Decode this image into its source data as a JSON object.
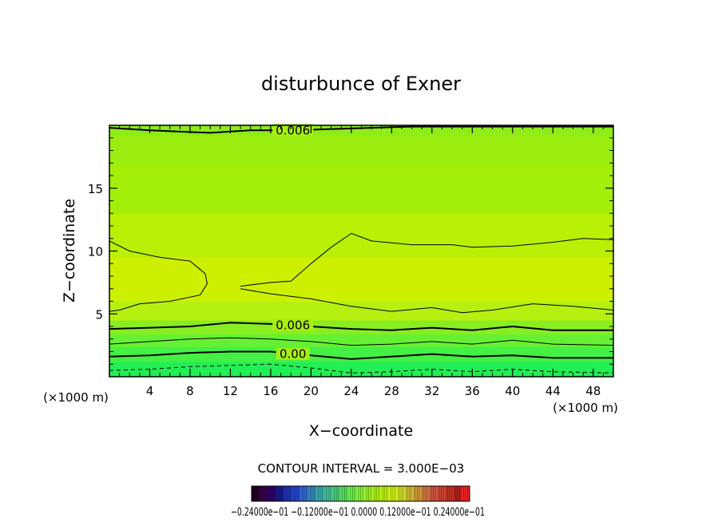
{
  "chart_data": {
    "type": "contour",
    "title": "disturbunce of Exner",
    "xlabel": "X−coordinate",
    "ylabel": "Z−coordinate",
    "x_units_left": "(×1000 m)",
    "x_units_right": "(×1000 m)",
    "xlim": [
      0,
      50
    ],
    "ylim": [
      0,
      20
    ],
    "xticks": [
      4,
      8,
      12,
      16,
      20,
      24,
      28,
      32,
      36,
      40,
      44,
      48
    ],
    "yticks": [
      5,
      10,
      15
    ],
    "contour_interval_text": "CONTOUR INTERVAL = 3.000E−03",
    "contour_labels": [
      {
        "text": "0.006",
        "x": 18.2,
        "z": 19.6
      },
      {
        "text": "0.006",
        "x": 18.2,
        "z": 4.1
      },
      {
        "text": "0.00",
        "x": 18.2,
        "z": 1.8
      }
    ],
    "contour_lines": [
      {
        "level": "upper",
        "style": "thick",
        "points": [
          [
            0,
            19.8
          ],
          [
            4,
            19.6
          ],
          [
            10,
            19.4
          ],
          [
            14,
            19.6
          ],
          [
            18,
            19.6
          ],
          [
            30,
            19.9
          ],
          [
            50,
            19.9
          ]
        ]
      },
      {
        "level": "mid",
        "style": "thin",
        "points": [
          [
            0,
            10.8
          ],
          [
            2,
            10
          ],
          [
            5,
            9.5
          ],
          [
            8,
            9.2
          ],
          [
            9.5,
            8.2
          ],
          [
            9.7,
            7.4
          ],
          [
            9,
            6.5
          ],
          [
            6,
            6
          ],
          [
            3,
            5.8
          ],
          [
            1,
            5.3
          ],
          [
            0,
            5.2
          ]
        ]
      },
      {
        "level": "mid",
        "style": "thin",
        "points": [
          [
            13,
            7.2
          ],
          [
            14,
            7.3
          ],
          [
            16,
            7.5
          ],
          [
            18,
            7.6
          ],
          [
            19,
            8.3
          ],
          [
            20,
            9
          ],
          [
            22,
            10.3
          ],
          [
            24,
            11.4
          ],
          [
            26,
            10.8
          ],
          [
            30,
            10.5
          ],
          [
            34,
            10.5
          ],
          [
            36,
            10.3
          ],
          [
            40,
            10.4
          ],
          [
            44,
            10.7
          ],
          [
            47,
            11
          ],
          [
            50,
            10.9
          ]
        ]
      },
      {
        "level": "mid",
        "style": "thin",
        "points": [
          [
            13,
            7
          ],
          [
            16,
            6.6
          ],
          [
            20,
            6.2
          ],
          [
            24,
            5.6
          ],
          [
            28,
            5.2
          ],
          [
            32,
            5.5
          ],
          [
            35,
            5.1
          ],
          [
            38,
            5.3
          ],
          [
            42,
            5.8
          ],
          [
            46,
            5.6
          ],
          [
            50,
            5.3
          ]
        ]
      },
      {
        "level": "0.006",
        "style": "thick",
        "points": [
          [
            0,
            3.8
          ],
          [
            4,
            3.9
          ],
          [
            8,
            4.0
          ],
          [
            12,
            4.3
          ],
          [
            16,
            4.2
          ],
          [
            20,
            4.0
          ],
          [
            24,
            3.8
          ],
          [
            28,
            3.7
          ],
          [
            32,
            3.9
          ],
          [
            36,
            3.7
          ],
          [
            40,
            4.0
          ],
          [
            44,
            3.7
          ],
          [
            50,
            3.7
          ]
        ]
      },
      {
        "level": "low",
        "style": "thin",
        "points": [
          [
            0,
            2.6
          ],
          [
            4,
            2.8
          ],
          [
            8,
            3.0
          ],
          [
            12,
            3.1
          ],
          [
            16,
            3.0
          ],
          [
            20,
            2.8
          ],
          [
            24,
            2.5
          ],
          [
            28,
            2.6
          ],
          [
            32,
            2.8
          ],
          [
            36,
            2.6
          ],
          [
            40,
            2.9
          ],
          [
            44,
            2.6
          ],
          [
            50,
            2.5
          ]
        ]
      },
      {
        "level": "0.00",
        "style": "thick",
        "points": [
          [
            0,
            1.6
          ],
          [
            4,
            1.7
          ],
          [
            8,
            1.9
          ],
          [
            12,
            2.0
          ],
          [
            16,
            2.0
          ],
          [
            20,
            1.7
          ],
          [
            24,
            1.4
          ],
          [
            28,
            1.6
          ],
          [
            32,
            1.8
          ],
          [
            36,
            1.6
          ],
          [
            40,
            1.7
          ],
          [
            44,
            1.5
          ],
          [
            50,
            1.5
          ]
        ]
      },
      {
        "level": "neg",
        "style": "dashed",
        "points": [
          [
            0,
            0.5
          ],
          [
            4,
            0.6
          ],
          [
            8,
            0.8
          ],
          [
            12,
            0.9
          ],
          [
            16,
            1.0
          ],
          [
            20,
            0.7
          ],
          [
            24,
            0.3
          ],
          [
            28,
            0.4
          ],
          [
            32,
            0.6
          ],
          [
            36,
            0.4
          ],
          [
            40,
            0.6
          ],
          [
            44,
            0.4
          ],
          [
            50,
            0.3
          ]
        ]
      }
    ],
    "fill_bands": [
      {
        "z": [
          0,
          1.2
        ],
        "color": "#22ee55"
      },
      {
        "z": [
          1.2,
          2.4
        ],
        "color": "#44f044"
      },
      {
        "z": [
          2.4,
          3.4
        ],
        "color": "#66f033"
      },
      {
        "z": [
          3.4,
          4.5
        ],
        "color": "#88ee22"
      },
      {
        "z": [
          4.5,
          6.0
        ],
        "color": "#b5f010"
      },
      {
        "z": [
          6.0,
          9.5
        ],
        "color": "#ccf000"
      },
      {
        "z": [
          9.5,
          13.0
        ],
        "color": "#b9f005"
      },
      {
        "z": [
          13.0,
          17.0
        ],
        "color": "#a3ef0a"
      },
      {
        "z": [
          17.0,
          19.2
        ],
        "color": "#9cee10"
      },
      {
        "z": [
          19.2,
          20.0
        ],
        "color": "#8eec18"
      }
    ],
    "colorbar": {
      "label_text": "−0.24000e−01  −0.12000e−01  0.0000  0.12000e−01  0.24000e−01",
      "colors": [
        "#220022",
        "#330044",
        "#2a0066",
        "#1a1a88",
        "#2233aa",
        "#2244cc",
        "#3366cc",
        "#3388bb",
        "#33aaaa",
        "#44bb99",
        "#44cc77",
        "#55dd55",
        "#66ee44",
        "#88ee33",
        "#99ee22",
        "#aaee11",
        "#bbee11",
        "#ccee11",
        "#ccdd22",
        "#ccbb33",
        "#cc9933",
        "#cc7744",
        "#cc5544",
        "#cc4433",
        "#bb3322",
        "#aa2222",
        "#ee2222"
      ]
    }
  }
}
